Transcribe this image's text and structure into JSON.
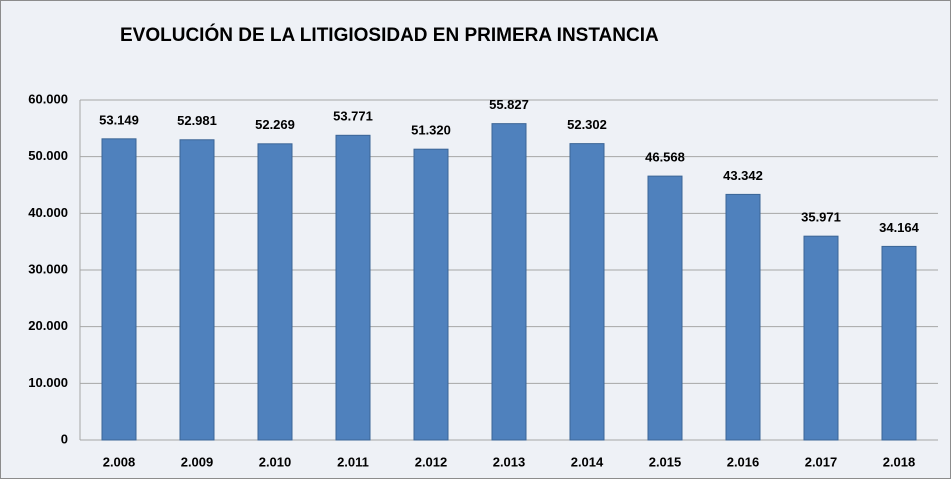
{
  "chart_data": {
    "type": "bar",
    "title": "EVOLUCIÓN DE LA LITIGIOSIDAD EN PRIMERA INSTANCIA",
    "categories": [
      "2.008",
      "2.009",
      "2.010",
      "2.011",
      "2.012",
      "2.013",
      "2.014",
      "2.015",
      "2.016",
      "2.017",
      "2.018"
    ],
    "values": [
      53149,
      52981,
      52269,
      53771,
      51320,
      55827,
      52302,
      46568,
      43342,
      35971,
      34164
    ],
    "value_labels": [
      "53.149",
      "52.981",
      "52.269",
      "53.771",
      "51.320",
      "55.827",
      "52.302",
      "46.568",
      "43.342",
      "35.971",
      "34.164"
    ],
    "color": "#4f81bd",
    "ylim": [
      0,
      60000
    ],
    "yticks": [
      0,
      {
        "value": 10000,
        "label": "10.000"
      },
      {
        "value": 20000,
        "label": "20.000"
      },
      {
        "value": 30000,
        "label": "30.000"
      },
      {
        "value": 40000,
        "label": "40.000"
      },
      {
        "value": 50000,
        "label": "50.000"
      },
      {
        "value": 60000,
        "label": "60.000"
      }
    ],
    "grid": true
  }
}
